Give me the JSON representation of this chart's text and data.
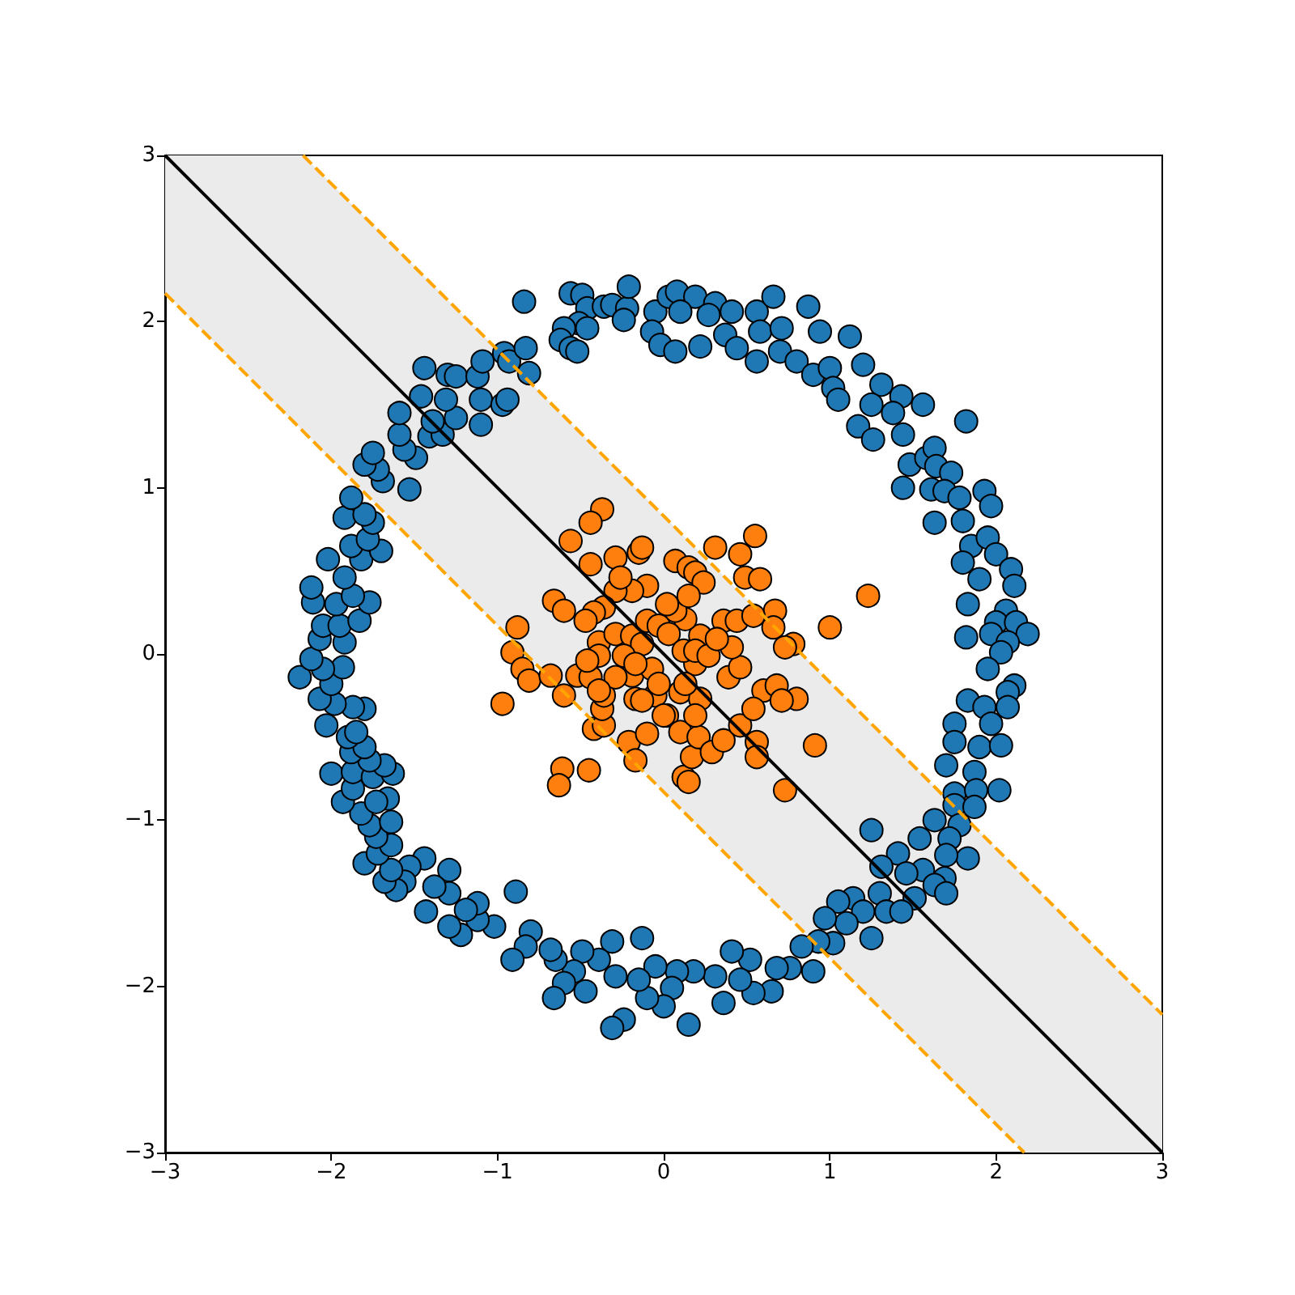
{
  "chart_data": {
    "type": "scatter",
    "xlim": [
      -3,
      3
    ],
    "ylim": [
      -3,
      3
    ],
    "xticks": [
      {
        "value": -3,
        "label": "−3"
      },
      {
        "value": -2,
        "label": "−2"
      },
      {
        "value": -1,
        "label": "−1"
      },
      0,
      1,
      2,
      3
    ],
    "yticks": [
      {
        "value": -3,
        "label": "−3"
      },
      {
        "value": -2,
        "label": "−2"
      },
      {
        "value": -1,
        "label": "−1"
      },
      0,
      1,
      2,
      3
    ],
    "series": [
      {
        "color": "#1f77b4",
        "marker": "circle",
        "x": [
          -0.84,
          -0.56,
          -0.49,
          -0.46,
          -0.51,
          -0.6,
          -0.62,
          -0.56,
          -0.52,
          -0.46,
          -0.36,
          -0.31,
          -0.22,
          -0.21,
          -0.24,
          -0.05,
          -0.07,
          0.03,
          -0.02,
          0.08,
          0.19,
          0.31,
          0.41,
          0.56,
          0.66,
          0.87,
          0.1,
          0.27,
          0.07,
          0.22,
          0.37,
          0.44,
          0.56,
          0.58,
          0.71,
          0.7,
          0.8,
          0.9,
          0.94,
          1.0,
          1.02,
          1.05,
          1.12,
          1.2,
          1.31,
          1.25,
          1.43,
          1.56,
          1.38,
          1.17,
          1.26,
          1.44,
          1.48,
          1.58,
          1.63,
          1.82,
          1.64,
          1.73,
          1.44,
          1.61,
          1.69,
          1.63,
          1.78,
          1.93,
          1.97,
          1.8,
          1.85,
          1.95,
          2.0,
          1.8,
          1.9,
          2.09,
          2.11,
          1.83,
          2.06,
          2.0,
          2.12,
          2.19,
          1.82,
          1.97,
          2.07,
          2.03,
          1.95,
          2.11,
          2.07,
          1.83,
          1.93,
          2.07,
          1.75,
          1.97,
          1.75,
          1.9,
          2.03,
          1.7,
          1.87,
          1.75,
          1.88,
          2.02,
          1.75,
          1.87,
          1.78,
          1.63,
          1.54,
          1.72,
          1.83,
          1.7,
          1.25,
          1.41,
          1.31,
          1.56,
          1.69,
          1.46,
          1.63,
          1.7,
          1.51,
          1.3,
          1.34,
          1.43,
          1.14,
          1.2,
          1.05,
          1.1,
          1.25,
          0.97,
          1.02,
          0.93,
          0.83,
          0.9,
          0.76,
          0.68,
          0.65,
          0.52,
          0.54,
          0.46,
          0.41,
          0.36,
          0.31,
          0.18,
          0.08,
          0.05,
          0.0,
          0.15,
          -0.05,
          -0.1,
          -0.15,
          -0.24,
          -0.31,
          -0.13,
          -0.31,
          -0.29,
          -0.47,
          -0.39,
          -0.49,
          -0.54,
          -0.6,
          -0.65,
          -0.68,
          -0.66,
          -0.8,
          -0.83,
          -0.91,
          -0.89,
          -1.02,
          -1.12,
          -1.12,
          -1.19,
          -1.22,
          -1.29,
          -1.29,
          -1.29,
          -1.38,
          -1.43,
          -1.44,
          -1.53,
          -1.56,
          -1.61,
          -1.68,
          -1.64,
          -1.8,
          -1.72,
          -1.64,
          -1.73,
          -1.77,
          -1.64,
          -1.82,
          -1.66,
          -1.73,
          -1.93,
          -1.87,
          -2.0,
          -1.87,
          -1.75,
          -1.63,
          -1.68,
          -1.77,
          -1.88,
          -1.8,
          -1.9,
          -1.85,
          -2.03,
          -1.8,
          -1.87,
          -1.98,
          -2.07,
          -2.0,
          -2.19,
          -1.93,
          -2.05,
          -2.12,
          -2.07,
          -1.92,
          -2.05,
          -1.95,
          -1.83,
          -2.11,
          -1.97,
          -1.77,
          -2.12,
          -1.87,
          -1.92,
          -2.02,
          -1.82,
          -1.88,
          -1.7,
          -1.78,
          -1.92,
          -1.75,
          -1.8,
          -1.88,
          -1.53,
          -1.69,
          -1.72,
          -1.8,
          -1.75,
          -1.49,
          -1.56,
          -1.59,
          -1.41,
          -1.33,
          -1.39,
          -1.59,
          -1.25,
          -1.1,
          -1.46,
          -1.31,
          -1.1,
          -0.97,
          -0.94,
          -1.44,
          -1.3,
          -1.25,
          -1.12,
          -1.09,
          -0.96,
          -0.93,
          -0.83,
          -0.81
        ],
        "values": [
          2.12,
          2.17,
          2.16,
          2.08,
          1.99,
          1.96,
          1.89,
          1.84,
          1.82,
          1.96,
          2.09,
          2.1,
          2.08,
          2.21,
          2.01,
          2.06,
          1.94,
          2.15,
          1.86,
          2.18,
          2.15,
          2.11,
          2.06,
          2.06,
          2.15,
          2.09,
          2.06,
          2.04,
          1.82,
          1.85,
          1.92,
          1.84,
          1.76,
          1.94,
          1.96,
          1.82,
          1.76,
          1.68,
          1.94,
          1.72,
          1.6,
          1.53,
          1.91,
          1.74,
          1.62,
          1.5,
          1.55,
          1.5,
          1.45,
          1.37,
          1.29,
          1.32,
          1.14,
          1.18,
          1.24,
          1.4,
          1.13,
          1.09,
          1.0,
          0.99,
          0.98,
          0.79,
          0.94,
          0.98,
          0.89,
          0.8,
          0.65,
          0.7,
          0.6,
          0.55,
          0.45,
          0.51,
          0.41,
          0.3,
          0.26,
          0.19,
          0.19,
          0.12,
          0.1,
          0.12,
          0.07,
          0.01,
          -0.09,
          -0.19,
          -0.23,
          -0.28,
          -0.32,
          -0.32,
          -0.42,
          -0.42,
          -0.53,
          -0.56,
          -0.55,
          -0.67,
          -0.71,
          -0.84,
          -0.82,
          -0.82,
          -0.91,
          -0.92,
          -1.03,
          -1.0,
          -1.11,
          -1.11,
          -1.23,
          -1.21,
          -1.06,
          -1.2,
          -1.28,
          -1.3,
          -1.35,
          -1.32,
          -1.39,
          -1.44,
          -1.47,
          -1.44,
          -1.55,
          -1.55,
          -1.47,
          -1.55,
          -1.49,
          -1.62,
          -1.71,
          -1.59,
          -1.74,
          -1.73,
          -1.76,
          -1.91,
          -1.89,
          -1.89,
          -2.03,
          -1.84,
          -2.04,
          -1.96,
          -1.79,
          -2.1,
          -1.94,
          -1.91,
          -1.91,
          -2.01,
          -2.12,
          -2.23,
          -1.88,
          -2.07,
          -1.96,
          -2.2,
          -2.25,
          -1.71,
          -1.73,
          -1.94,
          -2.03,
          -1.84,
          -1.79,
          -1.91,
          -1.98,
          -1.84,
          -1.78,
          -2.07,
          -1.67,
          -1.76,
          -1.84,
          -1.43,
          -1.64,
          -1.6,
          -1.5,
          -1.54,
          -1.69,
          -1.64,
          -1.44,
          -1.3,
          -1.4,
          -1.55,
          -1.23,
          -1.28,
          -1.37,
          -1.42,
          -1.37,
          -1.3,
          -1.26,
          -1.2,
          -1.15,
          -1.1,
          -1.03,
          -1.01,
          -0.96,
          -0.87,
          -0.89,
          -0.89,
          -0.81,
          -0.72,
          -0.71,
          -0.74,
          -0.72,
          -0.67,
          -0.64,
          -0.59,
          -0.56,
          -0.5,
          -0.47,
          -0.43,
          -0.33,
          -0.32,
          -0.3,
          -0.27,
          -0.18,
          -0.14,
          -0.08,
          -0.09,
          -0.03,
          0.09,
          0.07,
          0.17,
          0.17,
          0.2,
          0.31,
          0.3,
          0.31,
          0.4,
          0.35,
          0.46,
          0.57,
          0.57,
          0.65,
          0.62,
          0.69,
          0.82,
          0.79,
          0.84,
          0.94,
          0.99,
          1.04,
          1.11,
          1.14,
          1.21,
          1.18,
          1.23,
          1.32,
          1.31,
          1.32,
          1.4,
          1.45,
          1.42,
          1.38,
          1.55,
          1.53,
          1.53,
          1.5,
          1.53,
          1.72,
          1.68,
          1.67,
          1.67,
          1.76,
          1.81,
          1.76,
          1.84,
          1.69
        ]
      },
      {
        "color": "#ff7f0e",
        "marker": "circle",
        "x": [
          -0.37,
          -0.44,
          -0.56,
          -0.44,
          -0.29,
          -0.15,
          -0.13,
          0.07,
          0.15,
          0.19,
          0.24,
          0.31,
          0.46,
          0.55,
          0.49,
          0.58,
          1.23,
          1.0,
          0.67,
          0.66,
          0.78,
          0.73,
          -0.66,
          -0.6,
          -0.88,
          -0.91,
          -0.97,
          -0.85,
          -0.81,
          -0.68,
          -0.6,
          -0.52,
          -0.44,
          -0.42,
          -0.36,
          -0.37,
          -0.36,
          -0.21,
          -0.17,
          -0.61,
          -0.63,
          -0.45,
          -0.1,
          0.02,
          0.1,
          0.12,
          0.17,
          0.15,
          0.21,
          0.29,
          0.36,
          0.46,
          0.56,
          0.56,
          0.6,
          0.68,
          0.8,
          0.71,
          0.54,
          0.91,
          0.73,
          -0.17,
          -0.05,
          0.1,
          0.22,
          0.19,
          0.0,
          -0.19,
          -0.07,
          0.19,
          0.39,
          0.46,
          0.41,
          0.36,
          0.22,
          0.13,
          0.07,
          0.02,
          -0.1,
          -0.19,
          -0.29,
          -0.36,
          -0.42,
          -0.47,
          -0.39,
          -0.39,
          -0.46,
          -0.29,
          -0.19,
          -0.13,
          -0.1,
          -0.03,
          0.03,
          0.12,
          0.19,
          0.27,
          0.32,
          0.44,
          0.54,
          -0.24,
          -0.17,
          -0.29,
          -0.03,
          0.13,
          -0.13,
          -0.39,
          0.15,
          -0.26
        ],
        "values": [
          0.87,
          0.79,
          0.68,
          0.54,
          0.58,
          0.61,
          0.64,
          0.56,
          0.52,
          0.49,
          0.43,
          0.64,
          0.6,
          0.71,
          0.46,
          0.45,
          0.35,
          0.16,
          0.26,
          0.16,
          0.06,
          0.04,
          0.32,
          0.26,
          0.16,
          0.01,
          -0.3,
          -0.09,
          -0.16,
          -0.13,
          -0.25,
          -0.13,
          -0.14,
          -0.45,
          -0.43,
          -0.33,
          -0.25,
          -0.53,
          -0.64,
          -0.69,
          -0.79,
          -0.7,
          -0.48,
          -0.37,
          -0.47,
          -0.74,
          -0.62,
          -0.77,
          -0.5,
          -0.59,
          -0.52,
          -0.43,
          -0.53,
          -0.62,
          -0.22,
          -0.19,
          -0.27,
          -0.28,
          -0.33,
          -0.55,
          -0.82,
          -0.27,
          -0.25,
          -0.23,
          -0.27,
          -0.37,
          -0.37,
          -0.13,
          -0.09,
          -0.06,
          -0.14,
          -0.08,
          0.04,
          0.2,
          0.11,
          0.21,
          0.26,
          0.3,
          0.41,
          0.38,
          0.38,
          0.28,
          0.25,
          0.2,
          0.07,
          -0.01,
          -0.04,
          0.12,
          0.11,
          0.06,
          0.2,
          0.17,
          0.12,
          0.02,
          0.02,
          -0.01,
          0.09,
          0.2,
          0.23,
          -0.01,
          -0.06,
          -0.14,
          -0.18,
          -0.18,
          -0.28,
          -0.22,
          0.35,
          0.46
        ]
      },
      {
        "type": "line",
        "color": "#000000",
        "marker": "none",
        "line_style": "solid",
        "x": [
          -3,
          -2.17,
          2.17,
          3
        ],
        "values": [
          3,
          2.17,
          -2.17,
          -3
        ],
        "lower": [
          2.17,
          1.34,
          -3,
          -3
        ],
        "upper": [
          3,
          3,
          -1.34,
          -2.17
        ]
      },
      {
        "type": "line",
        "color": "#ffa500",
        "marker": "none",
        "line_style": "dashed",
        "x": [
          -2.17,
          3
        ],
        "values": [
          3,
          -2.17
        ]
      },
      {
        "type": "line",
        "color": "#ffa500",
        "marker": "none",
        "line_style": "dashed",
        "x": [
          -3,
          2.17
        ],
        "values": [
          2.17,
          -3
        ]
      }
    ]
  }
}
